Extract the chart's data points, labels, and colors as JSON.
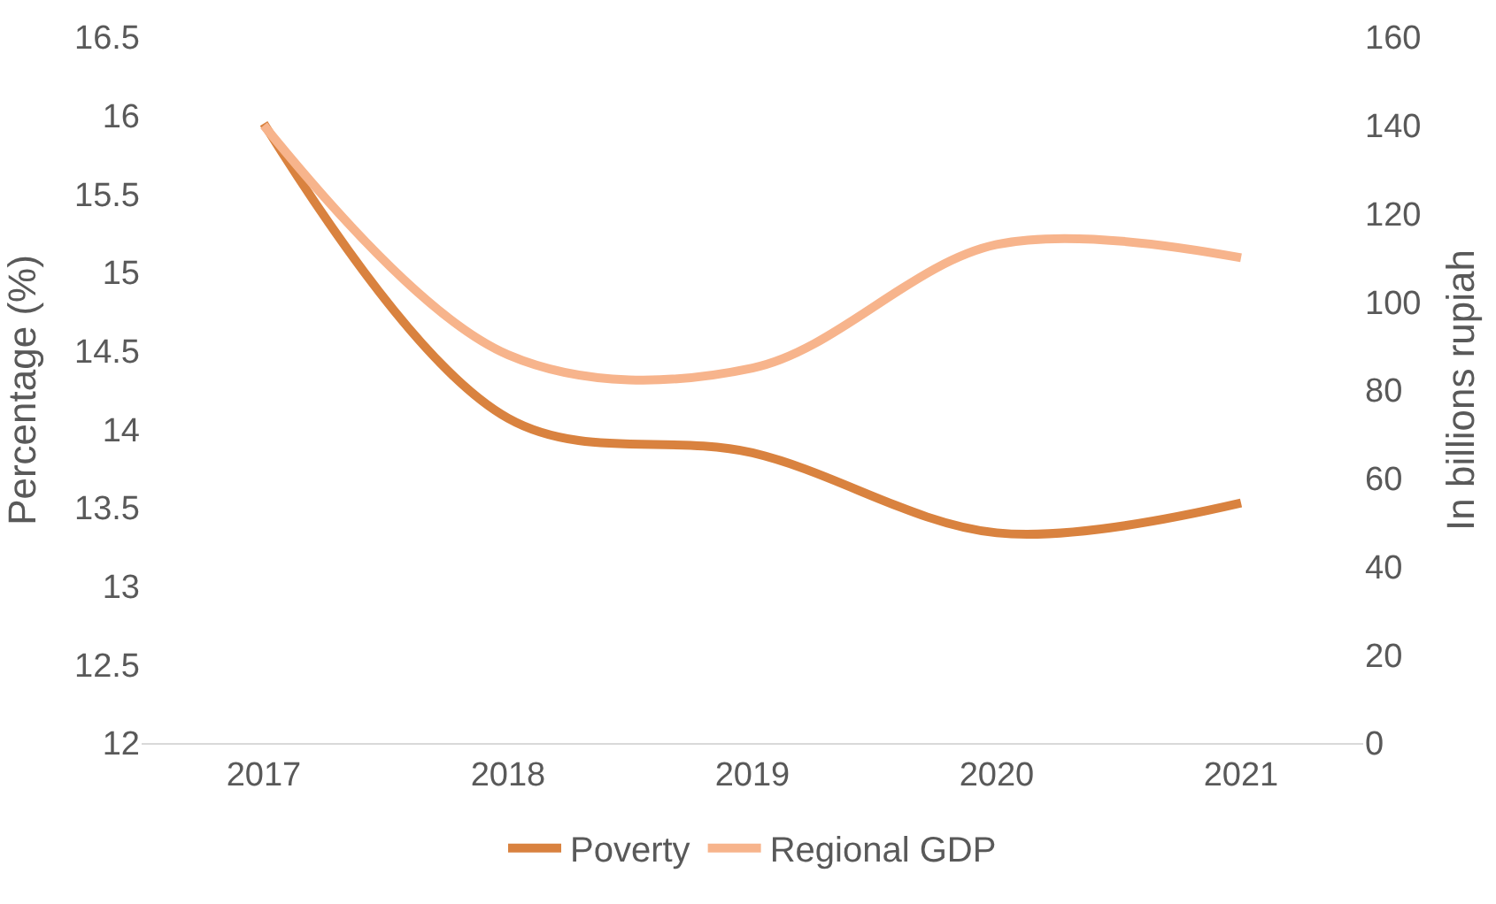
{
  "chart_data": {
    "type": "line",
    "ylabel": "Percentage (%)",
    "y2label": "In billions rupiah",
    "categories": [
      "2017",
      "2018",
      "2019",
      "2020",
      "2021"
    ],
    "series": [
      {
        "name": "Poverty",
        "color": "#d9823f",
        "values": [
          15.95,
          14.07,
          13.85,
          13.34,
          13.53
        ]
      },
      {
        "name": "Regional GDP",
        "color": "#f7b48c",
        "values": [
          140,
          88,
          85,
          113,
          110
        ],
        "axis": "y2"
      }
    ],
    "ylim": [
      12,
      16.5
    ],
    "yticks": [
      12,
      12.5,
      13,
      13.5,
      14,
      14.5,
      15,
      15.5,
      16,
      16.5
    ],
    "y2lim": [
      0,
      160
    ],
    "y2ticks": [
      0,
      20,
      40,
      60,
      80,
      100,
      120,
      140,
      160
    ],
    "legend": "bottom",
    "marker": "none",
    "line_style": "solid"
  }
}
